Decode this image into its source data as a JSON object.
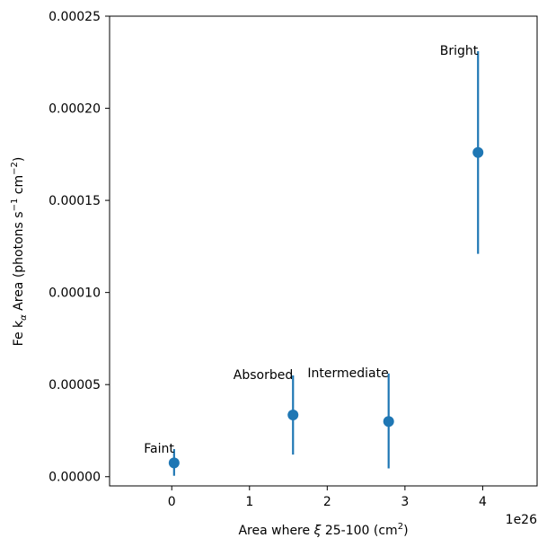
{
  "chart_data": {
    "type": "scatter",
    "xlabel_prefix": "Area where ",
    "xlabel_symbol": "ξ",
    "xlabel_mid": " 25-100 (cm",
    "xlabel_sup": "2",
    "xlabel_suffix": ")",
    "ylabel_main": "Fe k",
    "ylabel_sub": "α",
    "ylabel_mid": " Area (photons s",
    "ylabel_sup1": "−1",
    "ylabel_mid2": " cm",
    "ylabel_sup2": "−2",
    "ylabel_suffix": ")",
    "x_offset_text": "1e26",
    "xlim": [
      -0.8,
      4.7
    ],
    "ylim": [
      -5e-06,
      0.00025
    ],
    "xticks": [
      0,
      1,
      2,
      3,
      4
    ],
    "xtick_labels": [
      "0",
      "1",
      "2",
      "3",
      "4"
    ],
    "yticks": [
      0,
      5e-05,
      0.0001,
      0.00015,
      0.0002,
      0.00025
    ],
    "ytick_labels": [
      "0.00000",
      "0.00005",
      "0.00010",
      "0.00015",
      "0.00020",
      "0.00025"
    ],
    "grid": false,
    "color": "#1f77b4",
    "points": [
      {
        "label": "Faint",
        "x": 0.03,
        "y": 7.5e-06,
        "yerr_low": 5e-07,
        "yerr_high": 1.5e-05,
        "label_anchor": "end"
      },
      {
        "label": "Absorbed",
        "x": 1.56,
        "y": 3.35e-05,
        "yerr_low": 1.2e-05,
        "yerr_high": 5.5e-05,
        "label_anchor": "end"
      },
      {
        "label": "Intermediate",
        "x": 2.79,
        "y": 3e-05,
        "yerr_low": 4.5e-06,
        "yerr_high": 5.6e-05,
        "label_anchor": "end"
      },
      {
        "label": "Bright",
        "x": 3.94,
        "y": 0.000176,
        "yerr_low": 0.000121,
        "yerr_high": 0.000231,
        "label_anchor": "end"
      }
    ]
  }
}
